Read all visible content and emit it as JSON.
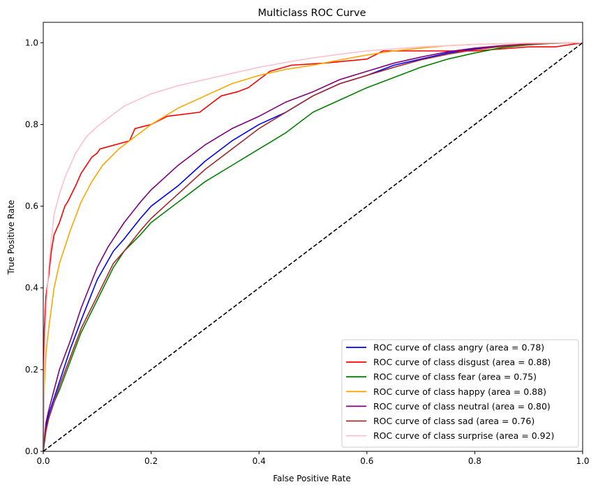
{
  "chart_data": {
    "type": "line",
    "title": "Multiclass ROC Curve",
    "xlabel": "False Positive Rate",
    "ylabel": "True Positive Rate",
    "xlim": [
      0.0,
      1.0
    ],
    "ylim": [
      0.0,
      1.05
    ],
    "xticks": [
      "0.0",
      "0.2",
      "0.4",
      "0.6",
      "0.8",
      "1.0"
    ],
    "yticks": [
      "0.0",
      "0.2",
      "0.4",
      "0.6",
      "0.8",
      "1.0"
    ],
    "grid": false,
    "legend_position": "bottom-right",
    "diagonal": {
      "x": [
        0,
        1
      ],
      "y": [
        0,
        1
      ],
      "color": "#000000",
      "style": "dashed"
    },
    "series": [
      {
        "name": "ROC curve of class angry (area = 0.78)",
        "color": "#0000ff",
        "x": [
          0,
          0.005,
          0.01,
          0.02,
          0.03,
          0.05,
          0.07,
          0.1,
          0.13,
          0.15,
          0.18,
          0.2,
          0.25,
          0.3,
          0.35,
          0.4,
          0.45,
          0.5,
          0.55,
          0.6,
          0.65,
          0.7,
          0.75,
          0.8,
          0.85,
          0.9,
          0.95,
          1.0
        ],
        "y": [
          0,
          0.06,
          0.09,
          0.13,
          0.17,
          0.25,
          0.32,
          0.42,
          0.49,
          0.52,
          0.57,
          0.6,
          0.65,
          0.71,
          0.76,
          0.8,
          0.83,
          0.87,
          0.9,
          0.92,
          0.945,
          0.96,
          0.975,
          0.985,
          0.992,
          0.997,
          0.999,
          1.0
        ]
      },
      {
        "name": "ROC curve of class disgust (area = 0.88)",
        "color": "#ff0000",
        "x": [
          0,
          0.002,
          0.005,
          0.01,
          0.015,
          0.02,
          0.03,
          0.04,
          0.045,
          0.06,
          0.07,
          0.08,
          0.09,
          0.1,
          0.105,
          0.16,
          0.17,
          0.2,
          0.23,
          0.29,
          0.31,
          0.33,
          0.36,
          0.38,
          0.4,
          0.42,
          0.46,
          0.52,
          0.6,
          0.63,
          0.7,
          0.8,
          0.9,
          0.95,
          1.0
        ],
        "y": [
          0,
          0.3,
          0.38,
          0.43,
          0.49,
          0.53,
          0.56,
          0.6,
          0.61,
          0.65,
          0.68,
          0.7,
          0.72,
          0.73,
          0.74,
          0.76,
          0.79,
          0.8,
          0.82,
          0.83,
          0.85,
          0.87,
          0.88,
          0.89,
          0.91,
          0.93,
          0.945,
          0.95,
          0.96,
          0.98,
          0.98,
          0.98,
          0.99,
          0.99,
          1.0
        ]
      },
      {
        "name": "ROC curve of class fear (area = 0.75)",
        "color": "#008000",
        "x": [
          0,
          0.005,
          0.01,
          0.02,
          0.03,
          0.05,
          0.07,
          0.1,
          0.13,
          0.15,
          0.18,
          0.2,
          0.25,
          0.3,
          0.35,
          0.4,
          0.45,
          0.5,
          0.55,
          0.6,
          0.65,
          0.7,
          0.75,
          0.8,
          0.85,
          0.9,
          0.95,
          1.0
        ],
        "y": [
          0,
          0.05,
          0.08,
          0.12,
          0.15,
          0.22,
          0.29,
          0.37,
          0.45,
          0.49,
          0.53,
          0.56,
          0.61,
          0.66,
          0.7,
          0.74,
          0.78,
          0.83,
          0.86,
          0.89,
          0.915,
          0.94,
          0.96,
          0.975,
          0.988,
          0.995,
          0.999,
          1.0
        ]
      },
      {
        "name": "ROC curve of class happy (area = 0.88)",
        "color": "#ffa500",
        "x": [
          0,
          0.002,
          0.005,
          0.01,
          0.015,
          0.02,
          0.03,
          0.05,
          0.07,
          0.09,
          0.11,
          0.14,
          0.17,
          0.2,
          0.25,
          0.3,
          0.35,
          0.4,
          0.45,
          0.5,
          0.55,
          0.6,
          0.65,
          0.7,
          0.75,
          0.8,
          0.9,
          1.0
        ],
        "y": [
          0,
          0.16,
          0.24,
          0.3,
          0.35,
          0.4,
          0.46,
          0.54,
          0.61,
          0.66,
          0.7,
          0.74,
          0.77,
          0.8,
          0.84,
          0.87,
          0.9,
          0.92,
          0.935,
          0.945,
          0.958,
          0.97,
          0.98,
          0.987,
          0.993,
          0.996,
          0.999,
          1.0
        ]
      },
      {
        "name": "ROC curve of class neutral (area = 0.80)",
        "color": "#800080",
        "x": [
          0,
          0.005,
          0.01,
          0.02,
          0.03,
          0.05,
          0.07,
          0.1,
          0.12,
          0.15,
          0.18,
          0.2,
          0.25,
          0.3,
          0.35,
          0.4,
          0.45,
          0.5,
          0.55,
          0.6,
          0.65,
          0.7,
          0.75,
          0.8,
          0.85,
          0.9,
          0.95,
          1.0
        ],
        "y": [
          0,
          0.07,
          0.1,
          0.15,
          0.2,
          0.27,
          0.35,
          0.45,
          0.5,
          0.56,
          0.61,
          0.64,
          0.7,
          0.75,
          0.79,
          0.82,
          0.855,
          0.88,
          0.91,
          0.93,
          0.95,
          0.965,
          0.978,
          0.987,
          0.993,
          0.997,
          0.999,
          1.0
        ]
      },
      {
        "name": "ROC curve of class sad (area = 0.76)",
        "color": "#a52a2a",
        "x": [
          0,
          0.005,
          0.01,
          0.02,
          0.03,
          0.05,
          0.07,
          0.1,
          0.13,
          0.15,
          0.18,
          0.2,
          0.25,
          0.3,
          0.35,
          0.4,
          0.45,
          0.5,
          0.55,
          0.6,
          0.65,
          0.7,
          0.75,
          0.8,
          0.85,
          0.9,
          0.95,
          1.0
        ],
        "y": [
          0,
          0.05,
          0.08,
          0.12,
          0.16,
          0.23,
          0.3,
          0.38,
          0.46,
          0.49,
          0.54,
          0.57,
          0.63,
          0.69,
          0.74,
          0.79,
          0.83,
          0.87,
          0.9,
          0.92,
          0.94,
          0.958,
          0.972,
          0.983,
          0.991,
          0.996,
          0.999,
          1.0
        ]
      },
      {
        "name": "ROC curve of class surprise (area = 0.92)",
        "color": "#ffc0cb",
        "x": [
          0,
          0.002,
          0.005,
          0.01,
          0.015,
          0.02,
          0.03,
          0.04,
          0.05,
          0.06,
          0.08,
          0.1,
          0.12,
          0.15,
          0.2,
          0.25,
          0.3,
          0.35,
          0.4,
          0.45,
          0.5,
          0.55,
          0.6,
          0.7,
          0.8,
          0.9,
          1.0
        ],
        "y": [
          0,
          0.22,
          0.34,
          0.45,
          0.52,
          0.58,
          0.63,
          0.67,
          0.7,
          0.73,
          0.77,
          0.795,
          0.815,
          0.845,
          0.875,
          0.895,
          0.91,
          0.925,
          0.94,
          0.952,
          0.963,
          0.972,
          0.98,
          0.99,
          0.996,
          0.999,
          1.0
        ]
      }
    ]
  }
}
